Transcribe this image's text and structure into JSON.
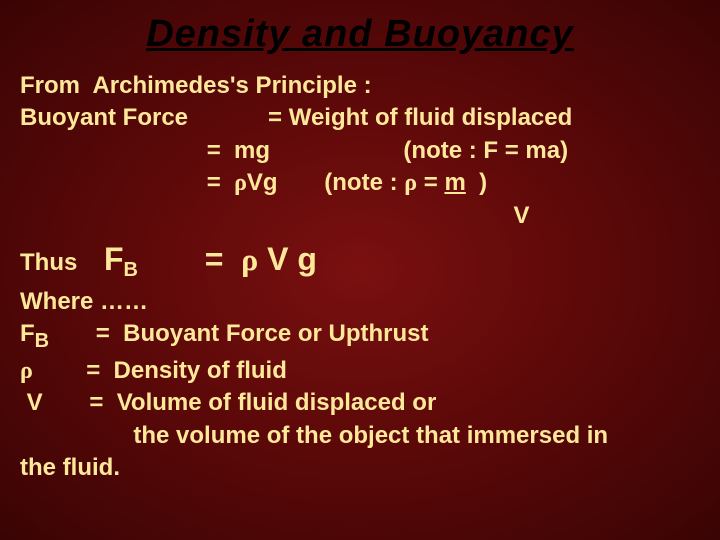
{
  "colors": {
    "background_center": "#7a1010",
    "background_mid": "#5a0808",
    "background_edge": "#3a0404",
    "title_color": "#000000",
    "body_text": "#ffe89a"
  },
  "typography": {
    "title_fontsize": 38,
    "body_fontsize": 24,
    "formula_fontsize": 32,
    "sub_fontsize": 20,
    "title_italic": true,
    "title_underline": true
  },
  "title": "Density and Buoyancy",
  "line1": "From  Archimedes's Principle :",
  "line2a": "Buoyant Force",
  "line2b": "= Weight of fluid displaced",
  "line3a": "=  mg",
  "line3b": "(note : F = ma)",
  "line4a": "=  ",
  "line4rho": "ρ",
  "line4b": "Vg",
  "line4c": "(note : ",
  "line4d": " = ",
  "line4m": "m",
  "line4e": "  )",
  "line5v": "V",
  "thus": "Thus",
  "fb_F": "F",
  "fb_B": "B",
  "eq": "=  ",
  "rho2": "ρ",
  "vg": " V g",
  "where": "Where ……",
  "def1a": "F",
  "def1sub": "B",
  "def1b": "       =  Buoyant Force or Upthrust",
  "def2a": "ρ",
  "def2b": "        =  Density of fluid",
  "def3a": " V       =  Volume of fluid displaced or",
  "def4": "                 the volume of the object that immersed in",
  "def5": "the fluid."
}
